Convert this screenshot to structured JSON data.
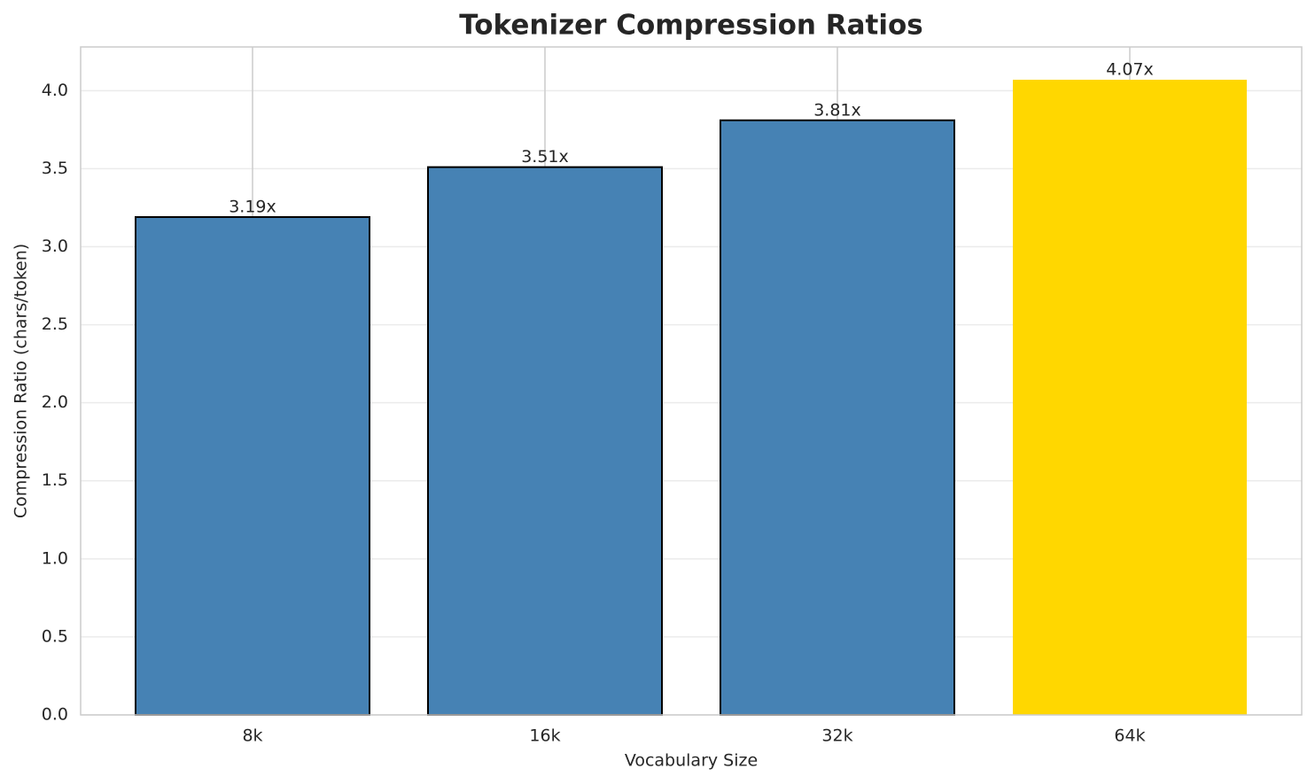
{
  "chart_data": {
    "type": "bar",
    "title": "Tokenizer Compression Ratios",
    "xlabel": "Vocabulary Size",
    "ylabel": "Compression Ratio (chars/token)",
    "categories": [
      "8k",
      "16k",
      "32k",
      "64k"
    ],
    "values": [
      3.19,
      3.51,
      3.81,
      4.07
    ],
    "value_labels": [
      "3.19x",
      "3.51x",
      "3.81x",
      "4.07x"
    ],
    "colors": [
      "#4682b4",
      "#4682b4",
      "#4682b4",
      "#ffd700"
    ],
    "edgecolors": [
      "#000000",
      "#000000",
      "#000000",
      "none"
    ],
    "ylim": [
      0,
      4.28
    ],
    "yticks": [
      {
        "value": 0,
        "label": "0.0"
      },
      0.5,
      {
        "value": 1,
        "label": "1.0"
      },
      1.5,
      {
        "value": 2,
        "label": "2.0"
      },
      2.5,
      {
        "value": 3,
        "label": "3.0"
      },
      3.5,
      {
        "value": 4,
        "label": "4.0"
      }
    ],
    "grid": true
  }
}
